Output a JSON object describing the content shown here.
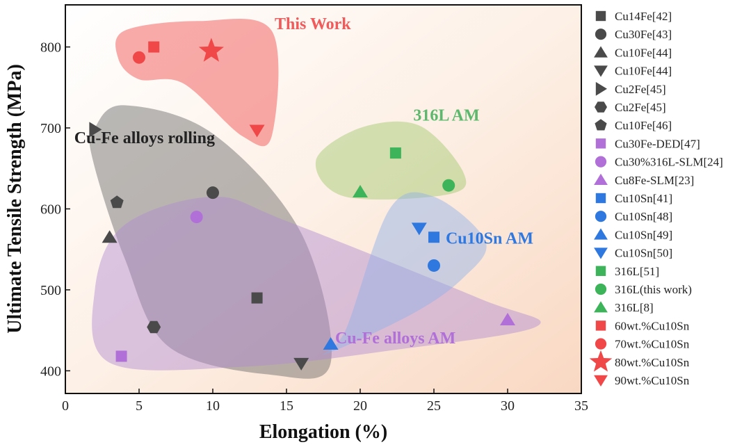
{
  "chart_data": {
    "type": "scatter",
    "xlabel": "Elongation (%)",
    "ylabel": "Ultimate Tensile Strength (MPa)",
    "xlim": [
      0,
      35
    ],
    "ylim": [
      372,
      852
    ],
    "xticks": [
      "0",
      "5",
      "10",
      "15",
      "20",
      "25",
      "30",
      "35"
    ],
    "yticks": [
      "400",
      "500",
      "600",
      "700",
      "800"
    ],
    "xtick_values": [
      0,
      5,
      10,
      15,
      20,
      25,
      30,
      35
    ],
    "ytick_values": [
      400,
      500,
      600,
      700,
      800
    ],
    "grid": false,
    "legend": "right-outside",
    "series": [
      {
        "name": "Cu14Fe[42]",
        "marker": "square",
        "color": "#4a4a4a",
        "points": [
          [
            13,
            490
          ]
        ]
      },
      {
        "name": "Cu30Fe[43]",
        "marker": "circle",
        "color": "#4a4a4a",
        "points": [
          [
            10,
            620
          ]
        ]
      },
      {
        "name": "Cu10Fe[44]",
        "marker": "triangle-up",
        "color": "#4a4a4a",
        "points": [
          [
            3,
            565
          ]
        ]
      },
      {
        "name": "Cu10Fe[44]",
        "marker": "triangle-down",
        "color": "#4a4a4a",
        "points": [
          [
            16,
            409
          ]
        ]
      },
      {
        "name": "Cu2Fe[45]",
        "marker": "triangle-right",
        "color": "#4a4a4a",
        "points": [
          [
            2,
            698
          ]
        ]
      },
      {
        "name": "Cu2Fe[45]",
        "marker": "hexagon",
        "color": "#4a4a4a",
        "points": [
          [
            6,
            454
          ]
        ]
      },
      {
        "name": "Cu10Fe[46]",
        "marker": "pentagon",
        "color": "#4a4a4a",
        "points": [
          [
            3.5,
            608
          ]
        ]
      },
      {
        "name": "Cu30Fe-DED[47]",
        "marker": "square",
        "color": "#b070d8",
        "points": [
          [
            3.8,
            418
          ]
        ]
      },
      {
        "name": "Cu30%316L-SLM[24]",
        "marker": "circle",
        "color": "#b070d8",
        "points": [
          [
            8.9,
            590
          ]
        ]
      },
      {
        "name": "Cu8Fe-SLM[23]",
        "marker": "triangle-up",
        "color": "#b070d8",
        "points": [
          [
            30,
            463
          ]
        ]
      },
      {
        "name": "Cu10Sn[41]",
        "marker": "square",
        "color": "#2f78e0",
        "points": [
          [
            25,
            565
          ]
        ]
      },
      {
        "name": "Cu10Sn[48]",
        "marker": "circle",
        "color": "#2f78e0",
        "points": [
          [
            25,
            530
          ]
        ]
      },
      {
        "name": "Cu10Sn[49]",
        "marker": "triangle-up",
        "color": "#2f78e0",
        "points": [
          [
            18,
            433
          ]
        ]
      },
      {
        "name": "Cu10Sn[50]",
        "marker": "triangle-down",
        "color": "#2f78e0",
        "points": [
          [
            24,
            576
          ]
        ]
      },
      {
        "name": "316L[51]",
        "marker": "square",
        "color": "#3db35a",
        "points": [
          [
            22.4,
            669
          ]
        ]
      },
      {
        "name": "316L(this work)",
        "marker": "circle",
        "color": "#3db35a",
        "points": [
          [
            26,
            629
          ]
        ]
      },
      {
        "name": "316L[8]",
        "marker": "triangle-up",
        "color": "#3db35a",
        "points": [
          [
            20,
            621
          ]
        ]
      },
      {
        "name": "60wt.%Cu10Sn",
        "marker": "square",
        "color": "#f04848",
        "points": [
          [
            6,
            800
          ]
        ]
      },
      {
        "name": "70wt.%Cu10Sn",
        "marker": "circle",
        "color": "#f04848",
        "points": [
          [
            5,
            787
          ]
        ]
      },
      {
        "name": "80wt.%Cu10Sn",
        "marker": "star",
        "color": "#f04848",
        "points": [
          [
            9.9,
            795
          ]
        ]
      },
      {
        "name": "90wt.%Cu10Sn",
        "marker": "triangle-down",
        "color": "#f04848",
        "points": [
          [
            13,
            697
          ]
        ]
      }
    ],
    "regions": [
      {
        "label": "This Work",
        "color": "#f04848",
        "text_color": "#f05a5a",
        "outline": [
          [
            4,
            820
          ],
          [
            9,
            832
          ],
          [
            14,
            820
          ],
          [
            14,
            690
          ],
          [
            12,
            690
          ],
          [
            8,
            755
          ],
          [
            5,
            760
          ],
          [
            3.6,
            785
          ]
        ],
        "label_at": [
          14.2,
          822
        ]
      },
      {
        "label": "316L AM",
        "color": "#9fc86a",
        "text_color": "#5cb86c",
        "outline": [
          [
            20,
            700
          ],
          [
            24,
            703
          ],
          [
            27,
            645
          ],
          [
            26,
            618
          ],
          [
            19,
            615
          ],
          [
            17,
            660
          ]
        ],
        "label_at": [
          23.6,
          709
        ]
      },
      {
        "label": "Cu-Fe alloys  rolling",
        "color": "#666666",
        "text_color": "#222222",
        "outline": [
          [
            2,
            700
          ],
          [
            4,
            728
          ],
          [
            10,
            693
          ],
          [
            16,
            570
          ],
          [
            18,
            410
          ],
          [
            14,
            395
          ],
          [
            7,
            430
          ],
          [
            4,
            540
          ],
          [
            1.8,
            665
          ]
        ],
        "label_at": [
          0.6,
          681
        ]
      },
      {
        "label": "Cu-Fe alloys  AM",
        "color": "#b08ad0",
        "text_color": "#b070d8",
        "outline": [
          [
            3,
            410
          ],
          [
            12,
            405
          ],
          [
            22,
            425
          ],
          [
            32,
            455
          ],
          [
            28,
            490
          ],
          [
            15,
            585
          ],
          [
            10,
            615
          ],
          [
            4,
            580
          ],
          [
            2,
            500
          ]
        ],
        "label_at": [
          18.3,
          434
        ]
      },
      {
        "label": "Cu10Sn AM",
        "color": "#8fb0e8",
        "text_color": "#2f78e0",
        "outline": [
          [
            17.5,
            420
          ],
          [
            19,
            450
          ],
          [
            22,
            600
          ],
          [
            25,
            615
          ],
          [
            28.5,
            560
          ],
          [
            27,
            515
          ],
          [
            23.5,
            470
          ]
        ],
        "label_at": [
          25.8,
          557
        ]
      }
    ]
  }
}
